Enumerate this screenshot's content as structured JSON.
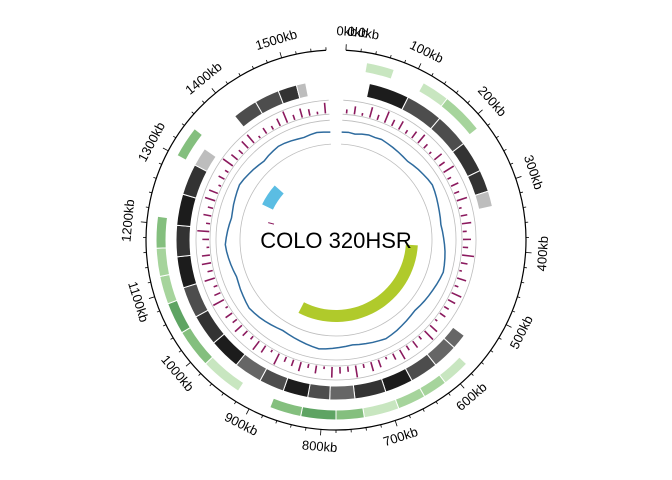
{
  "title": "COLO 320HSR",
  "genome_length_kb": 1560,
  "gap_deg": 6,
  "axis": {
    "unit": "kb",
    "major_tick_labels": [
      {
        "pos": 0,
        "label": "0kb"
      },
      {
        "pos": 100,
        "label": "100kb"
      },
      {
        "pos": 200,
        "label": "200kb"
      },
      {
        "pos": 300,
        "label": "300kb"
      },
      {
        "pos": 400,
        "label": "400kb"
      },
      {
        "pos": 500,
        "label": "500kb"
      },
      {
        "pos": 600,
        "label": "600kb"
      },
      {
        "pos": 700,
        "label": "700kb"
      },
      {
        "pos": 800,
        "label": "800kb"
      },
      {
        "pos": 900,
        "label": "900kb"
      },
      {
        "pos": 1000,
        "label": "1000kb"
      },
      {
        "pos": 1100,
        "label": "1100kb"
      },
      {
        "pos": 1200,
        "label": "1200kb"
      },
      {
        "pos": 1300,
        "label": "1300kb"
      },
      {
        "pos": 1400,
        "label": "1400kb"
      },
      {
        "pos": 1500,
        "label": "1500kb"
      }
    ],
    "extra_segment_labels": [
      "0kb",
      "0kb"
    ]
  },
  "colors": {
    "greens": [
      "#c8e6c0",
      "#a6d49c",
      "#84bf7e",
      "#5ea463",
      "#3a8a48"
    ],
    "greys": [
      "#1c1c1c",
      "#333333",
      "#4d4d4d",
      "#666666",
      "#bdbdbd"
    ],
    "bars": "#8b1a5e",
    "line": "#2e6b9e",
    "link_blue": "#5bbde3",
    "link_green": "#b0ca2b",
    "ring_border": "#bdbdbd"
  },
  "chart_data": {
    "type": "circos",
    "genes_track": [
      {
        "start": 30,
        "end": 70,
        "shade": 0
      },
      {
        "start": 115,
        "end": 185,
        "shade": 0
      },
      {
        "start": 155,
        "end": 215,
        "shade": 1
      },
      {
        "start": 575,
        "end": 615,
        "shade": 0
      },
      {
        "start": 615,
        "end": 650,
        "shade": 1
      },
      {
        "start": 650,
        "end": 690,
        "shade": 1
      },
      {
        "start": 690,
        "end": 740,
        "shade": 0
      },
      {
        "start": 740,
        "end": 780,
        "shade": 2
      },
      {
        "start": 780,
        "end": 830,
        "shade": 3
      },
      {
        "start": 830,
        "end": 875,
        "shade": 2
      },
      {
        "start": 925,
        "end": 985,
        "shade": 0
      },
      {
        "start": 985,
        "end": 1040,
        "shade": 2
      },
      {
        "start": 1040,
        "end": 1085,
        "shade": 3
      },
      {
        "start": 1085,
        "end": 1125,
        "shade": 1
      },
      {
        "start": 1125,
        "end": 1165,
        "shade": 1
      },
      {
        "start": 1165,
        "end": 1210,
        "shade": 2
      },
      {
        "start": 1300,
        "end": 1345,
        "shade": 2
      }
    ],
    "segments_track": [
      {
        "start": 40,
        "end": 105,
        "shade": 0
      },
      {
        "start": 105,
        "end": 165,
        "shade": 2
      },
      {
        "start": 165,
        "end": 220,
        "shade": 2
      },
      {
        "start": 220,
        "end": 270,
        "shade": 1
      },
      {
        "start": 270,
        "end": 305,
        "shade": 1
      },
      {
        "start": 305,
        "end": 330,
        "shade": 4
      },
      {
        "start": 545,
        "end": 570,
        "shade": 3
      },
      {
        "start": 570,
        "end": 610,
        "shade": 3
      },
      {
        "start": 610,
        "end": 655,
        "shade": 2
      },
      {
        "start": 655,
        "end": 700,
        "shade": 0
      },
      {
        "start": 700,
        "end": 750,
        "shade": 1
      },
      {
        "start": 750,
        "end": 790,
        "shade": 3
      },
      {
        "start": 790,
        "end": 825,
        "shade": 2
      },
      {
        "start": 825,
        "end": 865,
        "shade": 0
      },
      {
        "start": 865,
        "end": 905,
        "shade": 2
      },
      {
        "start": 905,
        "end": 950,
        "shade": 3
      },
      {
        "start": 950,
        "end": 1000,
        "shade": 0
      },
      {
        "start": 1000,
        "end": 1050,
        "shade": 1
      },
      {
        "start": 1050,
        "end": 1100,
        "shade": 2
      },
      {
        "start": 1100,
        "end": 1150,
        "shade": 0
      },
      {
        "start": 1150,
        "end": 1200,
        "shade": 1
      },
      {
        "start": 1200,
        "end": 1250,
        "shade": 0
      },
      {
        "start": 1250,
        "end": 1300,
        "shade": 1
      },
      {
        "start": 1300,
        "end": 1330,
        "shade": 4
      },
      {
        "start": 1400,
        "end": 1440,
        "shade": 2
      },
      {
        "start": 1440,
        "end": 1480,
        "shade": 2
      },
      {
        "start": 1480,
        "end": 1510,
        "shade": 1
      },
      {
        "start": 1510,
        "end": 1525,
        "shade": 4
      }
    ],
    "histogram_track": {
      "series": [
        {
          "values": [
            3,
            6,
            2,
            8,
            4,
            9,
            5,
            7,
            3,
            6,
            8,
            4,
            2,
            7,
            5,
            9,
            3,
            6,
            4,
            8,
            2,
            5,
            7,
            3,
            6,
            4,
            9,
            5,
            2,
            7,
            3,
            8,
            6,
            4,
            5,
            2,
            7,
            9,
            3,
            6,
            4,
            8,
            5,
            2,
            6,
            7,
            3,
            9,
            4,
            5,
            8,
            2,
            6,
            3,
            7,
            5,
            4,
            9,
            2,
            6,
            8,
            3,
            5,
            7,
            4,
            6,
            2,
            9,
            5,
            3,
            8,
            4,
            7,
            6,
            2,
            5,
            9,
            3,
            6,
            4,
            8,
            7,
            2,
            5,
            3,
            9,
            6,
            4,
            7,
            8,
            2,
            5,
            3,
            6,
            9,
            4,
            7,
            5,
            2,
            8
          ]
        }
      ]
    },
    "line_track": {
      "series": [
        {
          "values": [
            0.5,
            0.52,
            0.48,
            0.55,
            0.6,
            0.58,
            0.62,
            0.57,
            0.53,
            0.49,
            0.45,
            0.42,
            0.47,
            0.52,
            0.56,
            0.61,
            0.65,
            0.6,
            0.55,
            0.5,
            0.46,
            0.43,
            0.4,
            0.44,
            0.48,
            0.53,
            0.58,
            0.62,
            0.66,
            0.7,
            0.65,
            0.6,
            0.55,
            0.51,
            0.47,
            0.43,
            0.39,
            0.42,
            0.46,
            0.5,
            0.55,
            0.59,
            0.63,
            0.58,
            0.54,
            0.49,
            0.45,
            0.41,
            0.44,
            0.48,
            0.52,
            0.57,
            0.61,
            0.56,
            0.51,
            0.46,
            0.42,
            0.38,
            0.35,
            0.39,
            0.44,
            0.49,
            0.54,
            0.58,
            0.62,
            0.57,
            0.52,
            0.48,
            0.43,
            0.4,
            0.45,
            0.5,
            0.55,
            0.6,
            0.64,
            0.59,
            0.54,
            0.49,
            0.44,
            0.47,
            0.52,
            0.56,
            0.61,
            0.66,
            0.62,
            0.57,
            0.53,
            0.48,
            0.44,
            0.5,
            0.55,
            0.6,
            0.58,
            0.54,
            0.5,
            0.47,
            0.52,
            0.56,
            0.53,
            0.5
          ]
        }
      ]
    },
    "links": [
      {
        "from_start": 1290,
        "from_end": 1360,
        "to_start": 1290,
        "to_end": 1360,
        "color": "link_blue"
      },
      {
        "from_start": 400,
        "from_end": 430,
        "to_start": 840,
        "to_end": 900,
        "color": "link_green"
      },
      {
        "from_start": 1240,
        "from_end": 1245,
        "to_start": 1240,
        "to_end": 1245,
        "color": "bars"
      }
    ]
  }
}
